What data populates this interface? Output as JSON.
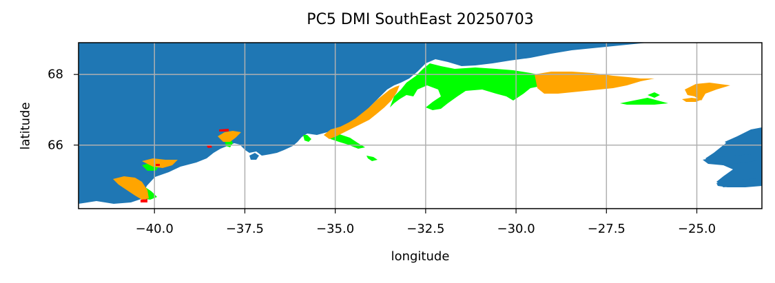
{
  "title": "PC5 DMI SouthEast 20250703",
  "xlabel": "longitude",
  "ylabel": "latitude",
  "xticks": [
    "−40.0",
    "−37.5",
    "−35.0",
    "−32.5",
    "−30.0",
    "−27.5",
    "−25.0"
  ],
  "yticks": [
    "68",
    "66"
  ],
  "colors": {
    "ocean": "#1f77b4",
    "land": "#ffffff",
    "green": "#00ff00",
    "orange": "#ffa500",
    "red": "#ff0000",
    "grid": "#b0b0b0"
  },
  "chart_data": {
    "type": "map",
    "xlim": [
      -42.1,
      -23.2
    ],
    "ylim": [
      64.2,
      68.9
    ],
    "xtick_values": [
      -40.0,
      -37.5,
      -35.0,
      -32.5,
      -30.0,
      -27.5,
      -25.0
    ],
    "ytick_values": [
      68,
      66
    ],
    "grid": true
  }
}
